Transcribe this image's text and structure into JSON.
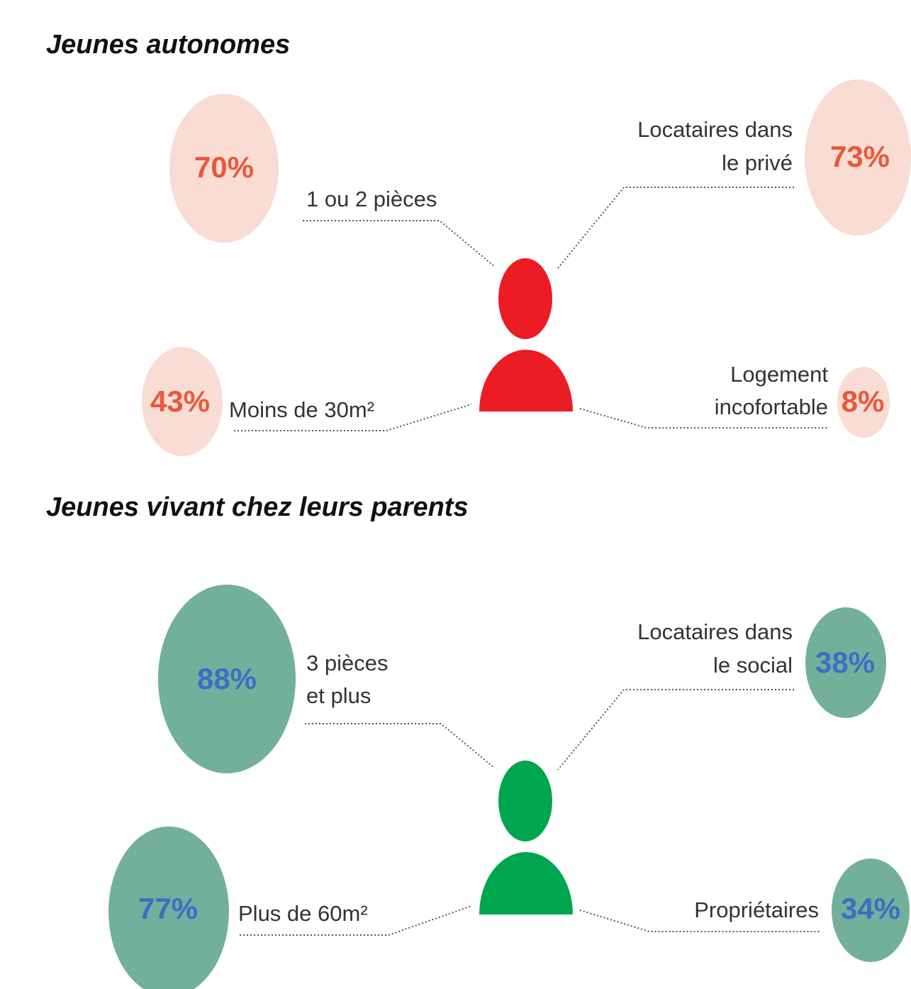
{
  "sections": [
    {
      "title": "Jeunes autonomes",
      "items": [
        {
          "value": "70%",
          "label": [
            "1 ou 2 pièces"
          ]
        },
        {
          "value": "73%",
          "label": [
            "Locataires dans",
            "le privé"
          ]
        },
        {
          "value": "43%",
          "label": [
            "Moins de 30m²"
          ]
        },
        {
          "value": "8%",
          "label": [
            "Logement",
            "incofortable"
          ]
        }
      ]
    },
    {
      "title": "Jeunes vivant chez leurs parents",
      "items": [
        {
          "value": "88%",
          "label": [
            "3 pièces",
            "et plus"
          ]
        },
        {
          "value": "38%",
          "label": [
            "Locataires dans",
            "le social"
          ]
        },
        {
          "value": "77%",
          "label": [
            "Plus de 60m²"
          ]
        },
        {
          "value": "34%",
          "label": [
            "Propriétaires"
          ]
        }
      ]
    }
  ]
}
